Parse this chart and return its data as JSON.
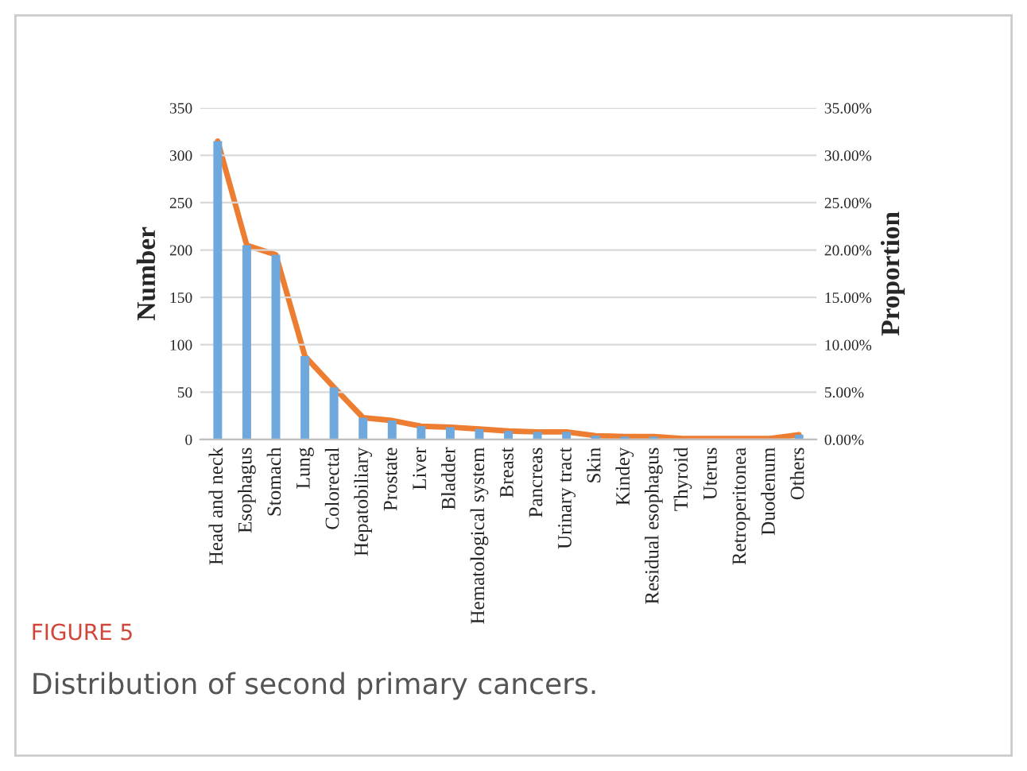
{
  "chart_data": {
    "type": "bar",
    "xlabel": null,
    "ylabel": "Number",
    "y2label": "Proportion",
    "categories": [
      "Head and neck",
      "Esophagus",
      "Stomach",
      "Lung",
      "Colorectal",
      "Hepatobiliary",
      "Prostate",
      "Liver",
      "Bladder",
      "Hematological system",
      "Breast",
      "Pancreas",
      "Urinary tract",
      "Skin",
      "Kindey",
      "Residual esophagus",
      "Thyroid",
      "Uterus",
      "Retroperitonea",
      "Duodenum",
      "Others"
    ],
    "series": [
      {
        "color": "#6fa8dc",
        "values": [
          315,
          205,
          195,
          88,
          55,
          23,
          20,
          14,
          13,
          11,
          9,
          8,
          8,
          4,
          3,
          3,
          null,
          null,
          null,
          null,
          5
        ]
      },
      {
        "type": "line",
        "axis": "y2",
        "color": "#ed7d31",
        "values": [
          31.5,
          20.5,
          19.5,
          8.8,
          5.5,
          2.3,
          2.0,
          1.4,
          1.3,
          1.1,
          0.9,
          0.8,
          0.8,
          0.4,
          0.3,
          0.3,
          0.1,
          0.1,
          0.1,
          0.1,
          0.5
        ]
      }
    ],
    "ylim": [
      0,
      350
    ],
    "yticks": [
      0,
      50,
      100,
      150,
      200,
      250,
      300,
      350
    ],
    "y2lim": [
      0,
      35
    ],
    "y2ticks": [
      {
        "value": 0,
        "label": "0.00%"
      },
      {
        "value": 5,
        "label": "5.00%"
      },
      {
        "value": 10,
        "label": "10.00%"
      },
      {
        "value": 15,
        "label": "15.00%"
      },
      {
        "value": 20,
        "label": "20.00%"
      },
      {
        "value": 25,
        "label": "25.00%"
      },
      {
        "value": 30,
        "label": "30.00%"
      },
      {
        "value": 35,
        "label": "35.00%"
      }
    ],
    "grid": "y",
    "annotations": [
      "FIGURE 5",
      "Distribution of second primary cancers."
    ]
  }
}
